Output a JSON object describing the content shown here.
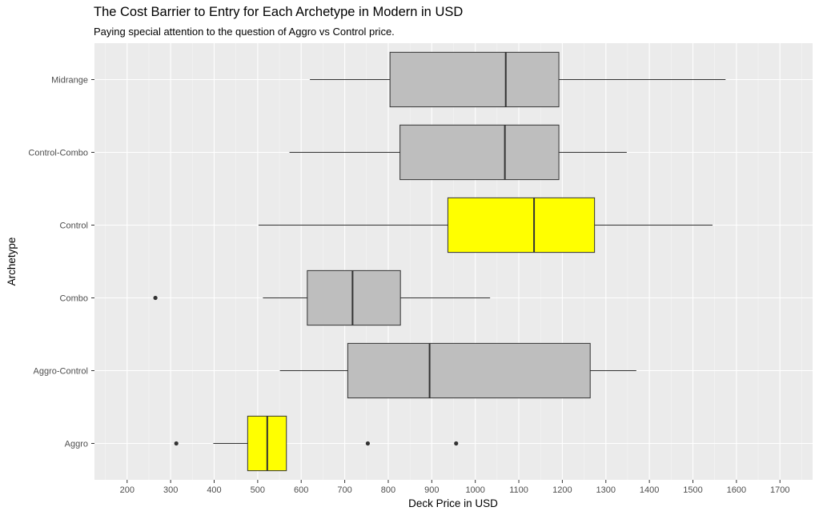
{
  "chart_data": {
    "type": "boxplot",
    "title": "The Cost Barrier to Entry for Each Archetype in Modern in USD",
    "subtitle": "Paying special attention to the question of Aggro vs Control price.",
    "xlabel": "Deck Price in USD",
    "ylabel": "Archetype",
    "xlim": [
      125,
      1775
    ],
    "x_ticks": [
      200,
      300,
      400,
      500,
      600,
      700,
      800,
      900,
      1000,
      1100,
      1200,
      1300,
      1400,
      1500,
      1600,
      1700
    ],
    "grid": true,
    "colors": {
      "panel": "#ebebeb",
      "grid_major": "#ffffff",
      "grid_minor": "#f5f5f5",
      "box_default": "#bebebe",
      "box_highlight": "#ffff00",
      "outline": "#333333",
      "axis_text": "#4d4d4d"
    },
    "categories": [
      "Aggro",
      "Aggro-Control",
      "Combo",
      "Control",
      "Control-Combo",
      "Midrange"
    ],
    "boxes": [
      {
        "category": "Aggro",
        "whisker_low": 398,
        "q1": 477,
        "median": 522,
        "q3": 566,
        "whisker_high": 566,
        "outliers": [
          313,
          753,
          956
        ],
        "highlight": true
      },
      {
        "category": "Aggro-Control",
        "whisker_low": 551,
        "q1": 707,
        "median": 895,
        "q3": 1264,
        "whisker_high": 1370,
        "outliers": [],
        "highlight": false
      },
      {
        "category": "Combo",
        "whisker_low": 512,
        "q1": 614,
        "median": 718,
        "q3": 828,
        "whisker_high": 1034,
        "outliers": [
          265
        ],
        "highlight": false
      },
      {
        "category": "Control",
        "whisker_low": 502,
        "q1": 937,
        "median": 1135,
        "q3": 1274,
        "whisker_high": 1545,
        "outliers": [],
        "highlight": true
      },
      {
        "category": "Control-Combo",
        "whisker_low": 573,
        "q1": 827,
        "median": 1068,
        "q3": 1192,
        "whisker_high": 1348,
        "outliers": [],
        "highlight": false
      },
      {
        "category": "Midrange",
        "whisker_low": 620,
        "q1": 804,
        "median": 1070,
        "q3": 1192,
        "whisker_high": 1575,
        "outliers": [],
        "highlight": false
      }
    ]
  }
}
